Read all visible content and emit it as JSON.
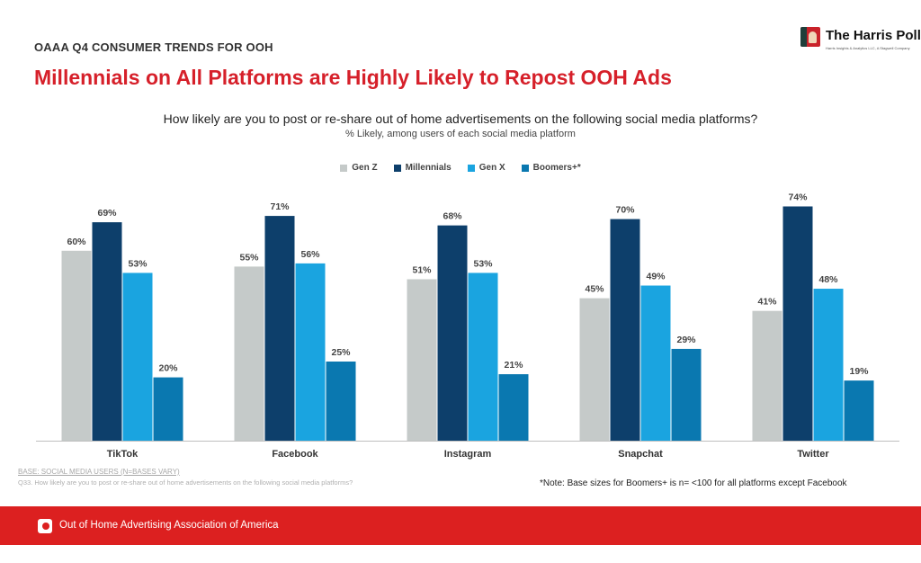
{
  "header": {
    "kicker": "OAAA Q4 CONSUMER TRENDS FOR OOH",
    "title": "Millennials on All Platforms are Highly Likely to Repost OOH Ads",
    "logo_name": "The Harris Poll",
    "logo_sub": "Harris Insights & Analytics LLC, A Stagwell Company"
  },
  "chart_data": {
    "type": "bar",
    "title": "How likely are you to post or re-share out of home advertisements on the following social media platforms?",
    "subtitle": "% Likely, among users of each social media platform",
    "categories": [
      "TikTok",
      "Facebook",
      "Instagram",
      "Snapchat",
      "Twitter"
    ],
    "series": [
      {
        "name": "Gen Z",
        "color": "#c5cac9",
        "values": [
          60,
          55,
          51,
          45,
          41
        ]
      },
      {
        "name": "Millennials",
        "color": "#0d3f6b",
        "values": [
          69,
          71,
          68,
          70,
          74
        ]
      },
      {
        "name": "Gen X",
        "color": "#1aa4e0",
        "values": [
          53,
          56,
          53,
          49,
          48
        ]
      },
      {
        "name": "Boomers+*",
        "color": "#0a78b0",
        "values": [
          20,
          25,
          21,
          29,
          19
        ]
      }
    ],
    "value_suffix": "%",
    "ylim": [
      0,
      80
    ],
    "grid": false,
    "legend_position": "top-center"
  },
  "notes": {
    "base": "BASE: SOCIAL MEDIA USERS (N=BASES VARY)",
    "question": "Q33. How likely are you to post or re-share out of home advertisements on the following social media platforms?",
    "boomers_note": "*Note: Base sizes for Boomers+ is n= <100 for all platforms except Facebook"
  },
  "footer": {
    "org": "Out of Home Advertising Association of America"
  }
}
